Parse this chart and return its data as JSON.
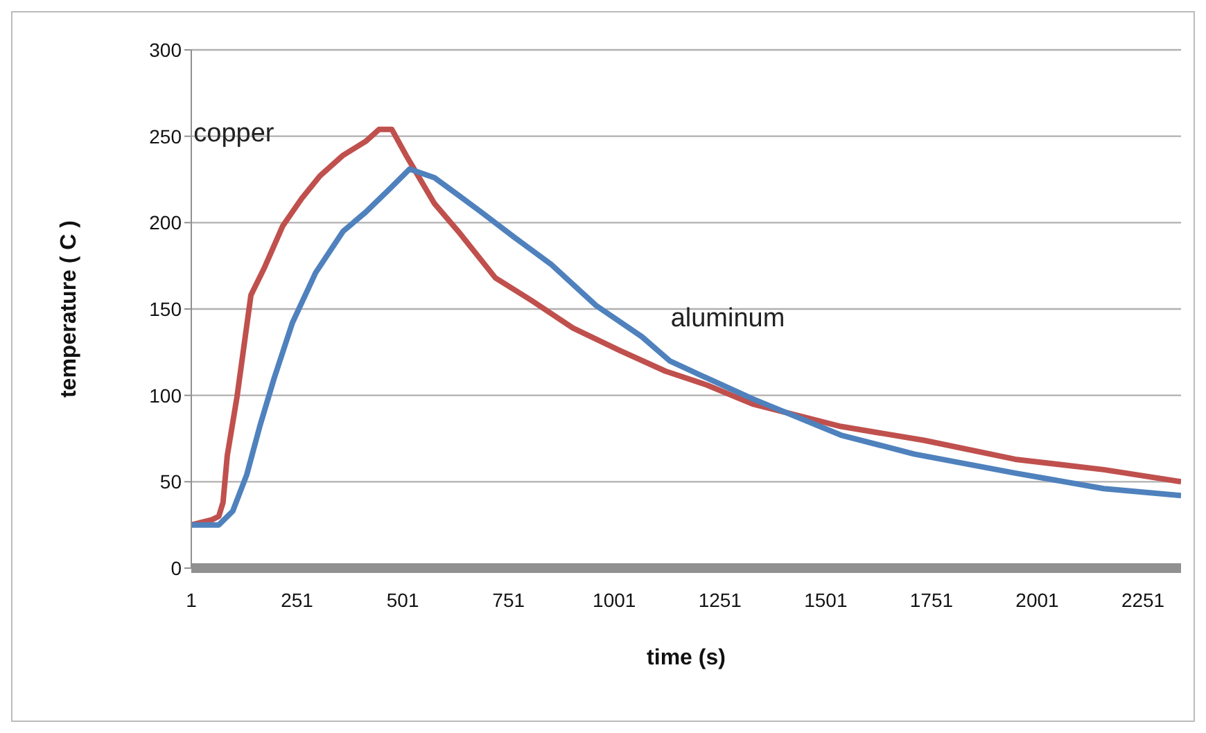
{
  "chart_data": {
    "type": "line",
    "xlabel": "time (s)",
    "ylabel": "temperature ( C )",
    "xlim": [
      1,
      2341
    ],
    "xticks": [
      1,
      251,
      501,
      751,
      1001,
      1251,
      1501,
      1751,
      2001,
      2251
    ],
    "ylim": [
      0,
      300
    ],
    "yticks": [
      0,
      50,
      100,
      150,
      200,
      250,
      300
    ],
    "grid": "y",
    "legend": false,
    "marker": "none",
    "line_style": "solid",
    "series": [
      {
        "name": "copper",
        "color": "#c0504d",
        "x": [
          1,
          50,
          66,
          76,
          86,
          109,
          142,
          174,
          217,
          262,
          305,
          360,
          413,
          445,
          475,
          511,
          576,
          632,
          720,
          805,
          903,
          1014,
          1122,
          1220,
          1328,
          1537,
          1733,
          1949,
          2158,
          2341
        ],
        "values": [
          25,
          28,
          30,
          38,
          65,
          99,
          158,
          174,
          198,
          214,
          227,
          239,
          247,
          254,
          254,
          238,
          211,
          195,
          168,
          155,
          139,
          126,
          114,
          106,
          95,
          82,
          74,
          63,
          57,
          50
        ]
      },
      {
        "name": "aluminum",
        "color": "#4f81bd",
        "x": [
          1,
          66,
          99,
          132,
          164,
          197,
          240,
          295,
          360,
          413,
          468,
          517,
          576,
          632,
          687,
          762,
          851,
          958,
          1066,
          1132,
          1220,
          1328,
          1537,
          1710,
          1949,
          2158,
          2341
        ],
        "values": [
          25,
          25,
          33,
          54,
          83,
          110,
          142,
          171,
          195,
          206,
          219,
          231,
          226,
          216,
          206,
          192,
          176,
          152,
          134,
          120,
          110,
          98,
          77,
          66,
          55,
          46,
          42
        ]
      }
    ]
  }
}
